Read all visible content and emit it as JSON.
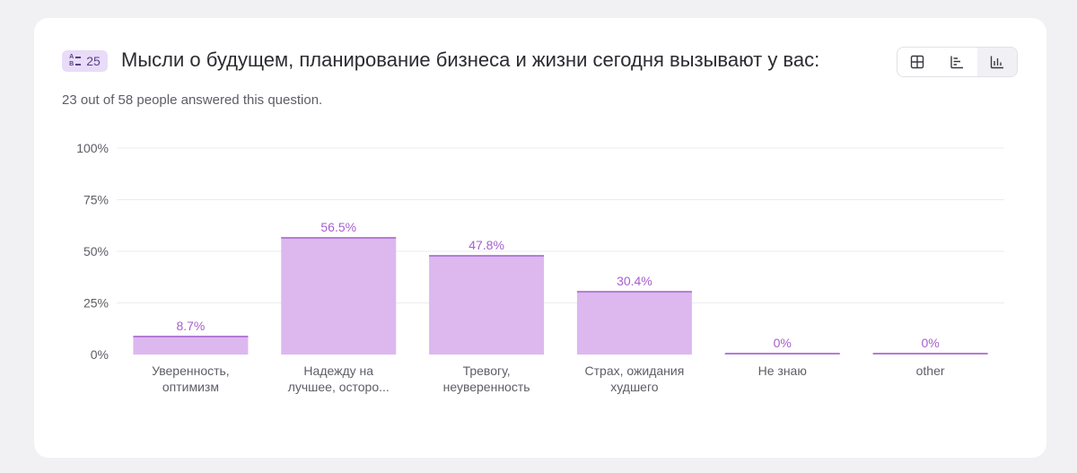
{
  "question": {
    "number": "25",
    "title": "Мысли о будущем, планирование бизнеса и жизни сегодня вызывают у вас:",
    "answered_text": "23 out of 58 people answered this question."
  },
  "view_switcher": {
    "icons": [
      "grid-view-icon",
      "horizontal-bar-view-icon",
      "vertical-bar-view-icon"
    ],
    "active": "vertical-bar-view-icon"
  },
  "colors": {
    "bar_fill": "#dcb8ef",
    "bar_top": "#b57bd6",
    "value_label": "#a75fd0",
    "axis_text": "#5f5d66",
    "gridline": "#ecebef"
  },
  "chart_data": {
    "type": "bar",
    "categories": [
      [
        "Уверенность,",
        "оптимизм"
      ],
      [
        "Надежду на",
        "лучшее, осторо..."
      ],
      [
        "Тревогу,",
        "неуверенность"
      ],
      [
        "Страх, ожидания",
        "худшего"
      ],
      [
        "Не знаю"
      ],
      [
        "other"
      ]
    ],
    "values": [
      8.7,
      56.5,
      47.8,
      30.4,
      0,
      0
    ],
    "value_labels": [
      "8.7%",
      "56.5%",
      "47.8%",
      "30.4%",
      "0%",
      "0%"
    ],
    "yticks": [
      "0%",
      "25%",
      "50%",
      "75%",
      "100%"
    ],
    "ylim": [
      0,
      100
    ],
    "grid": true
  }
}
